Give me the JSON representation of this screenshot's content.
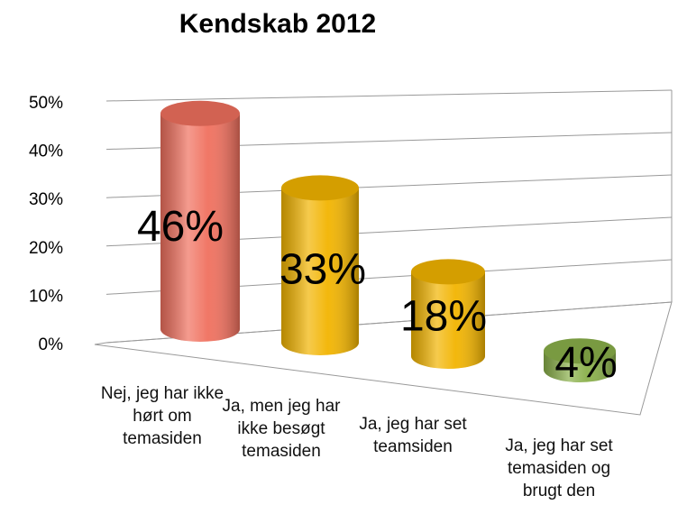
{
  "chart_data": {
    "type": "bar3d",
    "title": "Kendskab 2012",
    "categories": [
      "Nej, jeg har ikke hørt om temasiden",
      "Ja, men jeg har ikke besøgt temasiden",
      "Ja, jeg har set teamsiden",
      "Ja, jeg har set temasiden og brugt den"
    ],
    "values": [
      46,
      33,
      18,
      4
    ],
    "value_labels": [
      "46%",
      "33%",
      "18%",
      "4%"
    ],
    "colors": [
      "#f0705e",
      "#f2b400",
      "#f2b400",
      "#8ab04a"
    ],
    "ylim": [
      0,
      50
    ],
    "yticks": [
      {
        "value": 0,
        "label": "0%"
      },
      {
        "value": 10,
        "label": "10%"
      },
      {
        "value": 20,
        "label": "20%"
      },
      {
        "value": 30,
        "label": "30%"
      },
      {
        "value": 40,
        "label": "40%"
      },
      {
        "value": 50,
        "label": "50%"
      }
    ],
    "grid": true
  }
}
